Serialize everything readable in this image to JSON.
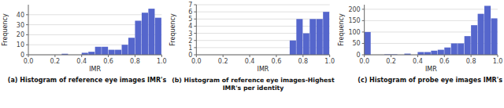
{
  "chart_data": [
    {
      "type": "histogram",
      "title": "(a) Histogram of reference eye images IMR's",
      "xlabel": "IMR",
      "ylabel": "Frequency",
      "color": "#5566cc",
      "grid": true,
      "bins": [
        0.0,
        0.05,
        0.1,
        0.15,
        0.2,
        0.25,
        0.3,
        0.35,
        0.4,
        0.45,
        0.5,
        0.55,
        0.6,
        0.65,
        0.7,
        0.75,
        0.8,
        0.85,
        0.9,
        0.95,
        1.0
      ],
      "values": [
        0,
        0,
        0,
        0,
        0,
        1,
        0,
        0,
        2,
        3,
        8,
        8,
        5,
        5,
        10,
        17,
        34,
        42,
        46,
        37
      ],
      "xlim": [
        0.0,
        1.0
      ],
      "ylim": [
        0,
        50
      ],
      "xticks": [
        {
          "value": 0.0,
          "label": "0.0"
        },
        0.2,
        0.4,
        0.6,
        0.8,
        {
          "value": 1.0,
          "label": "1.0"
        }
      ],
      "yticks": [
        0,
        10,
        20,
        30,
        40
      ]
    },
    {
      "type": "histogram",
      "title": "(b) Histogram of reference eye images-Highest\nIMR's per identity",
      "xlabel": "IMR",
      "ylabel": "Frequency",
      "color": "#5566cc",
      "grid": true,
      "bins": [
        0.0,
        0.05,
        0.1,
        0.15,
        0.2,
        0.25,
        0.3,
        0.35,
        0.4,
        0.45,
        0.5,
        0.55,
        0.6,
        0.65,
        0.7,
        0.75,
        0.8,
        0.85,
        0.9,
        0.95,
        1.0
      ],
      "values": [
        0,
        0,
        0,
        0,
        0,
        0,
        0,
        0,
        0,
        0,
        0,
        0,
        0,
        0,
        2,
        5,
        3,
        5,
        5,
        6
      ],
      "xlim": [
        0.0,
        1.0
      ],
      "ylim": [
        0,
        7
      ],
      "xticks": [
        {
          "value": 0.0,
          "label": "0.0"
        },
        0.2,
        0.4,
        0.6,
        0.8,
        {
          "value": 1.0,
          "label": "1.0"
        }
      ],
      "yticks": [
        0,
        1,
        2,
        3,
        4,
        5,
        6,
        7
      ]
    },
    {
      "type": "histogram",
      "title": "(c) Histogram of probe eye images IMR's",
      "xlabel": "IMR",
      "ylabel": "Frequency",
      "color": "#5566cc",
      "grid": true,
      "bins": [
        0.0,
        0.05,
        0.1,
        0.15,
        0.2,
        0.25,
        0.3,
        0.35,
        0.4,
        0.45,
        0.5,
        0.55,
        0.6,
        0.65,
        0.7,
        0.75,
        0.8,
        0.85,
        0.9,
        0.95,
        1.0
      ],
      "values": [
        100,
        0,
        0,
        2,
        2,
        0,
        5,
        0,
        12,
        12,
        18,
        22,
        32,
        50,
        50,
        82,
        130,
        180,
        215,
        160
      ],
      "xlim": [
        0.0,
        1.0
      ],
      "ylim": [
        0,
        220
      ],
      "xticks": [
        {
          "value": 0.0,
          "label": "0.0"
        },
        0.2,
        0.4,
        0.6,
        0.8,
        {
          "value": 1.0,
          "label": "1.0"
        }
      ],
      "yticks": [
        0,
        50,
        100,
        150,
        200
      ]
    }
  ]
}
